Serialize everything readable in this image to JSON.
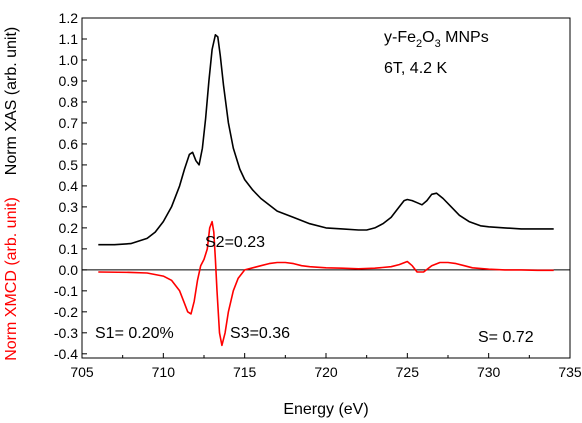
{
  "chart_data": {
    "type": "line",
    "xlabel": "Energy (eV)",
    "ylabel_xas": "Norm XAS (arb. unit)",
    "ylabel_xmcd": "Norm XMCD (arb. unit)",
    "xlim": [
      705,
      735
    ],
    "ylim": [
      -0.42,
      1.2
    ],
    "x_ticks": [
      "705",
      "710",
      "715",
      "720",
      "725",
      "730",
      "735"
    ],
    "y_ticks": [
      "-0.4",
      "-0.3",
      "-0.2",
      "-0.1",
      "0.0",
      "0.1",
      "0.2",
      "0.3",
      "0.4",
      "0.5",
      "0.6",
      "0.7",
      "0.8",
      "0.9",
      "1.0",
      "1.1",
      "1.2"
    ],
    "zero_line": 0,
    "annotations": {
      "sample_prefix": "y-Fe",
      "sample_sub1": "2",
      "sample_mid": "O",
      "sample_sub2": "3",
      "sample_suffix": " MNPs",
      "conditions": "6T, 4.2 K",
      "s1": "S1= 0.20%",
      "s2": "S2=0.23",
      "s3": "S3=0.36",
      "s_total": "S= 0.72"
    },
    "series": [
      {
        "id": "xas",
        "color": "#000000",
        "x": [
          706.0,
          707.0,
          708.0,
          709.0,
          709.5,
          710.0,
          710.5,
          711.0,
          711.3,
          711.6,
          711.8,
          712.0,
          712.2,
          712.4,
          712.6,
          712.8,
          713.0,
          713.2,
          713.35,
          713.5,
          713.7,
          714.0,
          714.3,
          714.7,
          715.0,
          715.5,
          716.0,
          717.0,
          718.0,
          719.0,
          720.0,
          721.0,
          722.0,
          722.5,
          723.0,
          723.5,
          724.0,
          724.5,
          724.8,
          725.0,
          725.3,
          725.6,
          725.9,
          726.2,
          726.5,
          726.8,
          727.2,
          727.7,
          728.2,
          728.8,
          729.5,
          730.0,
          731.0,
          732.0,
          733.0,
          734.0
        ],
        "y": [
          0.12,
          0.12,
          0.125,
          0.15,
          0.18,
          0.23,
          0.3,
          0.4,
          0.48,
          0.55,
          0.56,
          0.52,
          0.5,
          0.58,
          0.72,
          0.9,
          1.05,
          1.12,
          1.11,
          1.02,
          0.88,
          0.7,
          0.58,
          0.48,
          0.43,
          0.38,
          0.34,
          0.28,
          0.25,
          0.22,
          0.2,
          0.195,
          0.19,
          0.19,
          0.2,
          0.22,
          0.25,
          0.3,
          0.33,
          0.335,
          0.33,
          0.32,
          0.31,
          0.33,
          0.36,
          0.365,
          0.34,
          0.3,
          0.26,
          0.23,
          0.21,
          0.205,
          0.2,
          0.195,
          0.195,
          0.195
        ]
      },
      {
        "id": "xmcd",
        "color": "#ff0000",
        "x": [
          706.0,
          708.0,
          709.0,
          710.0,
          710.5,
          711.0,
          711.3,
          711.5,
          711.7,
          711.9,
          712.1,
          712.3,
          712.5,
          712.7,
          712.85,
          713.0,
          713.1,
          713.2,
          713.3,
          713.45,
          713.6,
          713.8,
          714.0,
          714.3,
          714.6,
          715.0,
          715.5,
          716.0,
          716.5,
          717.0,
          717.5,
          718.0,
          718.5,
          719.0,
          720.0,
          721.0,
          722.0,
          723.0,
          724.0,
          724.5,
          725.0,
          725.3,
          725.6,
          726.0,
          726.5,
          727.0,
          727.5,
          728.0,
          728.5,
          729.0,
          730.0,
          731.0,
          732.0,
          733.0,
          734.0
        ],
        "y": [
          -0.01,
          -0.012,
          -0.015,
          -0.03,
          -0.05,
          -0.1,
          -0.16,
          -0.2,
          -0.21,
          -0.15,
          -0.05,
          0.02,
          0.05,
          0.1,
          0.2,
          0.23,
          0.18,
          0.05,
          -0.1,
          -0.3,
          -0.36,
          -0.3,
          -0.2,
          -0.1,
          -0.04,
          0.0,
          0.01,
          0.02,
          0.03,
          0.035,
          0.035,
          0.03,
          0.02,
          0.015,
          0.01,
          0.008,
          0.005,
          0.008,
          0.015,
          0.025,
          0.04,
          0.02,
          -0.01,
          -0.01,
          0.02,
          0.035,
          0.035,
          0.03,
          0.02,
          0.01,
          0.003,
          0.0,
          0.0,
          -0.002,
          -0.002
        ]
      }
    ]
  }
}
